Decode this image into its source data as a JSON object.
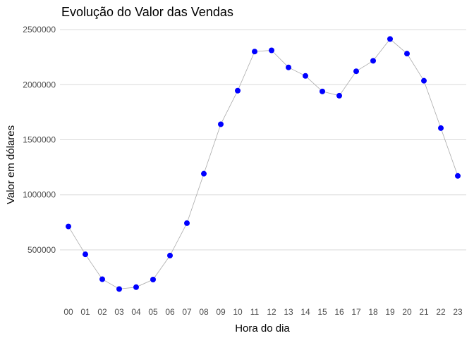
{
  "chart_data": {
    "type": "line",
    "title": "Evolução do Valor das Vendas",
    "xlabel": "Hora do dia",
    "ylabel": "Valor em dólares",
    "categories": [
      "00",
      "01",
      "02",
      "03",
      "04",
      "05",
      "06",
      "07",
      "08",
      "09",
      "10",
      "11",
      "12",
      "13",
      "14",
      "15",
      "16",
      "17",
      "18",
      "19",
      "20",
      "21",
      "22",
      "23"
    ],
    "values": [
      713000,
      460000,
      234000,
      145000,
      162000,
      231000,
      449000,
      743000,
      1192000,
      1641000,
      1946000,
      2301000,
      2312000,
      2157000,
      2080000,
      1939000,
      1900000,
      2122000,
      2217000,
      2415000,
      2282000,
      2036000,
      1606000,
      1172000
    ],
    "yticks": [
      "500000",
      "1000000",
      "1500000",
      "2000000",
      "2500000"
    ],
    "ytick_values": [
      500000,
      1000000,
      1500000,
      2000000,
      2500000
    ],
    "ylim": [
      20000,
      2590000
    ],
    "grid": true,
    "colors": {
      "marker": "#0000ff",
      "line": "#aaaaaa",
      "grid": "#d9d9d9"
    }
  }
}
